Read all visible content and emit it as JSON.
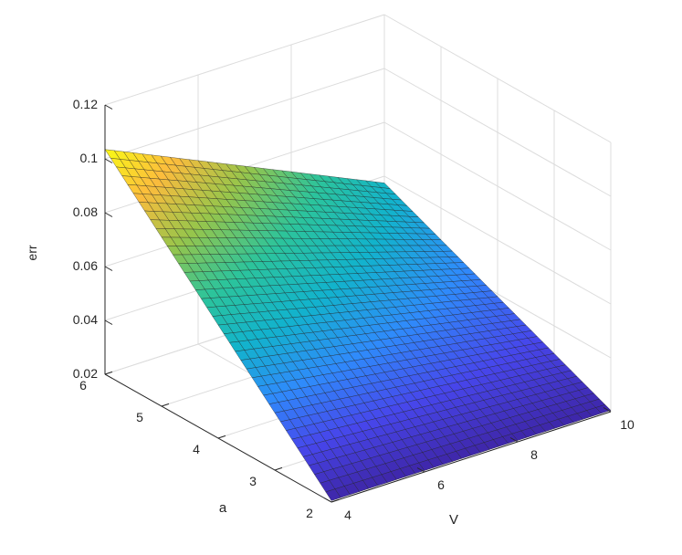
{
  "chart_data": {
    "type": "surface",
    "title": "",
    "xlabel": "V",
    "ylabel": "a",
    "zlabel": "err",
    "x_ticks": [
      "4",
      "6",
      "8",
      "10"
    ],
    "y_ticks": [
      "2",
      "3",
      "4",
      "5",
      "6"
    ],
    "z_ticks": [
      "0.02",
      "0.04",
      "0.06",
      "0.08",
      "0.1",
      "0.12"
    ],
    "xlim": [
      4,
      10
    ],
    "ylim": [
      2,
      6
    ],
    "zlim": [
      0.02,
      0.12
    ],
    "grid": true,
    "colormap": "parula",
    "colormap_colors": [
      "#3e26a8",
      "#4746eb",
      "#2f8bfb",
      "#12b3cc",
      "#2cc49b",
      "#97c54b",
      "#fcbc3d",
      "#f9fb15"
    ],
    "corner_values": [
      {
        "V": 4,
        "a": 2,
        "err": 0.0205
      },
      {
        "V": 10,
        "a": 2,
        "err": 0.0205
      },
      {
        "V": 4,
        "a": 6,
        "err": 0.1035
      },
      {
        "V": 10,
        "a": 6,
        "err": 0.0575
      }
    ],
    "description": "Surface err(V, a): err increases with a; for large a it decreases as V increases."
  }
}
